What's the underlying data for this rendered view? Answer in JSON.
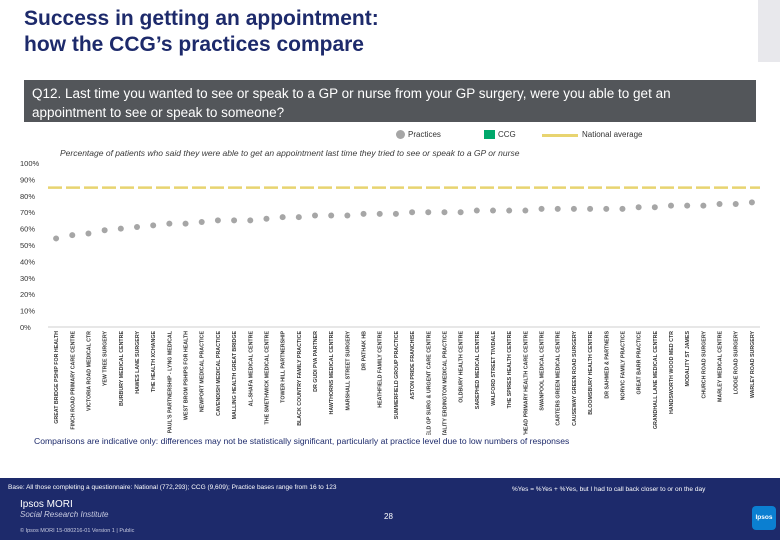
{
  "header": {
    "title_line1": "Success in getting an appointment:",
    "title_line2": "how the CCG’s practices compare"
  },
  "question": "Q12. Last time you wanted to see or speak to a GP or nurse from your GP surgery, were you able to get an appointment to see or speak to someone?",
  "legend": {
    "practices": "Practices",
    "ccg": "CCG",
    "national": "National average"
  },
  "subtitle": "Percentage of patients who said they were able to get an appointment last time they tried to see or speak to a GP or nurse",
  "colors": {
    "brand": "#1d2a6b",
    "practice_marker": "#a6a6a6",
    "ccg": "#00a86b",
    "national": "#e8d470",
    "question_bg": "#53565a"
  },
  "chart_data": {
    "type": "scatter",
    "y_axis": {
      "min": 0,
      "max": 100,
      "ticks": [
        "0%",
        "10%",
        "20%",
        "30%",
        "40%",
        "50%",
        "60%",
        "70%",
        "80%",
        "90%",
        "100%"
      ]
    },
    "national_average": 85,
    "categories": [
      "GREAT BRIDGE PSHIP FOR HEALTH",
      "FINCH ROAD PRIMARY CARE CENTRE",
      "VICTORIA ROAD MEDICAL CTR",
      "YEW TREE SURGERY",
      "BURBURY MEDICAL CENTRE",
      "HAWES LANE SURGERY",
      "THE HEALTH XCHANGE",
      "ST PAUL'S PARTNERSHIP - LYNG MEDICAL",
      "WEST BROM PSHIPS FOR HEALTH",
      "NEWPORT MEDICAL PRACTICE",
      "CAVENDISH MEDICAL PRACTICE",
      "MALLING HEALTH GREAT BRIDGE",
      "AL-SHAFA MEDICAL CENTRE",
      "THE SMETHWICK MEDICAL CENTRE",
      "TOWER HILL PARTNERSHIP",
      "BLACK COUNTRY FAMILY PRACTICE",
      "DR GUDI PVA PARTNER",
      "HAWTHORNS MEDICAL CENTRE",
      "MARSHALL STREET SURGERY",
      "DR PATHAK HB",
      "HEATHFIELD FAMILY CENTRE",
      "SUMMERFIELD GROUP PRACTICE",
      "ASTON PRIDE FRANCHISE",
      "SUMMERFIELD GP SURG & URGENT CARE CENTRE",
      "VITALITY ERDINGTON MEDICAL PRACTICE",
      "OLDBURY HEALTH CENTRE",
      "SAREPHED MEDICAL CENTRE",
      "WALFORD STREET TIVIDALE",
      "THE SPIRES HEALTH CENTRE",
      "HOLYHEAD PRIMARY HEALTH CARE CENTRE",
      "SWANPOOL MEDICAL CENTRE",
      "CARTERS GREEN MEDICAL CENTRE",
      "CAUSEWAY GREEN ROAD SURGERY",
      "BLOOMSBURY HEALTH CENTRE",
      "DR SAHMED & PARTNERS",
      "NORVIC FAMILY PRACTICE",
      "GREAT BARR PRACTICE",
      "GRANDHALL LANE MEDICAL CENTRE",
      "HANDSWORTH WOOD MED CTR",
      "MODALITY ST JAMES",
      "CHURCH ROAD SURGERY",
      "MARLEY MEDICAL CENTRE",
      "LODGE ROAD SURGERY",
      "WARLEY ROAD SURGERY"
    ],
    "series": [
      {
        "name": "Practices",
        "values": [
          54,
          56,
          57,
          59,
          60,
          61,
          62,
          63,
          63,
          64,
          65,
          65,
          65,
          66,
          67,
          67,
          68,
          68,
          68,
          69,
          69,
          69,
          70,
          70,
          70,
          70,
          71,
          71,
          71,
          71,
          72,
          72,
          72,
          72,
          72,
          72,
          73,
          73,
          74,
          74,
          74,
          75,
          75,
          76
        ]
      },
      {
        "name": "CCG",
        "values": []
      }
    ]
  },
  "footnote": "Comparisons are indicative only: differences may not be statistically significant, particularly at practice level due to low numbers of responses",
  "footer": {
    "base": "Base: All those completing a questionnaire: National (772,293); CCG (9,609); Practice bases range from 16 to 123",
    "yes_note": "%Yes = %Yes + %Yes, but I had to call back closer to or on the day",
    "ipsos_name": "Ipsos MORI",
    "ipsos_sub": "Social Research Institute",
    "copyright": "© Ipsos MORI     15-080216-01 Version 1 | Public",
    "page_number": "28",
    "logo_text": "Ipsos"
  }
}
